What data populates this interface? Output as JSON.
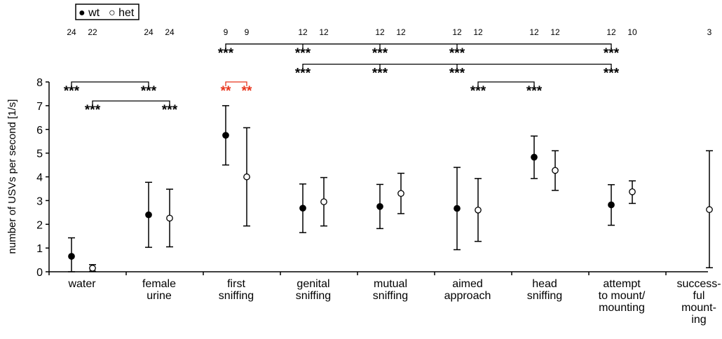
{
  "chart_data": {
    "type": "scatter",
    "title": "",
    "xlabel": "",
    "ylabel": "number of USVs per second [1/s]",
    "ylim": [
      0,
      8
    ],
    "yticks": [
      0,
      1,
      2,
      3,
      4,
      5,
      6,
      7,
      8
    ],
    "legend": {
      "placement": "top-left",
      "entries": [
        {
          "symbol": "●",
          "label": "wt"
        },
        {
          "symbol": "○",
          "label": "het"
        }
      ]
    },
    "categories": [
      {
        "lines": [
          "water"
        ]
      },
      {
        "lines": [
          "female",
          "urine"
        ]
      },
      {
        "lines": [
          "first",
          "sniffing"
        ]
      },
      {
        "lines": [
          "genital",
          "sniffing"
        ]
      },
      {
        "lines": [
          "mutual",
          "sniffing"
        ]
      },
      {
        "lines": [
          "aimed",
          "approach"
        ]
      },
      {
        "lines": [
          "head",
          "sniffing"
        ]
      },
      {
        "lines": [
          "attempt",
          "to mount/",
          "mounting"
        ]
      },
      {
        "lines": [
          "success-",
          "ful",
          "mount-",
          "ing"
        ]
      }
    ],
    "series": [
      {
        "name": "wt",
        "marker": "filled",
        "points": [
          {
            "cat": 0,
            "n": "24",
            "y": 0.65,
            "low": 0.0,
            "high": 1.43
          },
          {
            "cat": 1,
            "n": "24",
            "y": 2.4,
            "low": 1.03,
            "high": 3.77
          },
          {
            "cat": 2,
            "n": "9",
            "y": 5.75,
            "low": 4.5,
            "high": 7.0
          },
          {
            "cat": 3,
            "n": "12",
            "y": 2.68,
            "low": 1.65,
            "high": 3.7
          },
          {
            "cat": 4,
            "n": "12",
            "y": 2.75,
            "low": 1.82,
            "high": 3.68
          },
          {
            "cat": 5,
            "n": "12",
            "y": 2.67,
            "low": 0.93,
            "high": 4.4
          },
          {
            "cat": 6,
            "n": "12",
            "y": 4.83,
            "low": 3.93,
            "high": 5.72
          },
          {
            "cat": 7,
            "n": "12",
            "y": 2.82,
            "low": 1.96,
            "high": 3.67
          }
        ]
      },
      {
        "name": "het",
        "marker": "open",
        "points": [
          {
            "cat": 0,
            "n": "22",
            "y": 0.15,
            "low": 0.02,
            "high": 0.3
          },
          {
            "cat": 1,
            "n": "24",
            "y": 2.26,
            "low": 1.05,
            "high": 3.48
          },
          {
            "cat": 2,
            "n": "9",
            "y": 4.0,
            "low": 1.93,
            "high": 6.07
          },
          {
            "cat": 3,
            "n": "12",
            "y": 2.95,
            "low": 1.93,
            "high": 3.97
          },
          {
            "cat": 4,
            "n": "12",
            "y": 3.3,
            "low": 2.45,
            "high": 4.15
          },
          {
            "cat": 5,
            "n": "12",
            "y": 2.6,
            "low": 1.28,
            "high": 3.93
          },
          {
            "cat": 6,
            "n": "12",
            "y": 4.27,
            "low": 3.43,
            "high": 5.1
          },
          {
            "cat": 7,
            "n": "10",
            "y": 3.37,
            "low": 2.88,
            "high": 3.83
          },
          {
            "cat": 8,
            "n": "3",
            "y": 2.62,
            "low": 0.17,
            "high": 5.1
          }
        ]
      }
    ],
    "significance": [
      {
        "label": "***",
        "color": "#000000",
        "from": [
          0,
          "wt"
        ],
        "to": [
          1,
          "wt"
        ],
        "y": 8.0
      },
      {
        "label": "***",
        "color": "#000000",
        "from": [
          0,
          "het"
        ],
        "to": [
          1,
          "het"
        ],
        "y": 7.2
      },
      {
        "label": "**",
        "color": "#e8341c",
        "from": [
          2,
          "wt"
        ],
        "to": [
          2,
          "het"
        ],
        "y": 8.0
      },
      {
        "label": "***",
        "color": "#000000",
        "from": [
          2,
          "wt"
        ],
        "to": [
          7,
          "wt"
        ],
        "y": 9.6,
        "ticks_at": [
          [
            3,
            "wt"
          ],
          [
            4,
            "wt"
          ],
          [
            5,
            "wt"
          ]
        ]
      },
      {
        "label": "***",
        "color": "#000000",
        "from": [
          3,
          "wt"
        ],
        "to": [
          7,
          "wt"
        ],
        "y": 8.75,
        "ticks_at": [
          [
            4,
            "wt"
          ],
          [
            5,
            "wt"
          ]
        ]
      },
      {
        "label": "***",
        "color": "#000000",
        "from": [
          5,
          "het"
        ],
        "to": [
          6,
          "wt"
        ],
        "y": 8.0
      }
    ]
  }
}
